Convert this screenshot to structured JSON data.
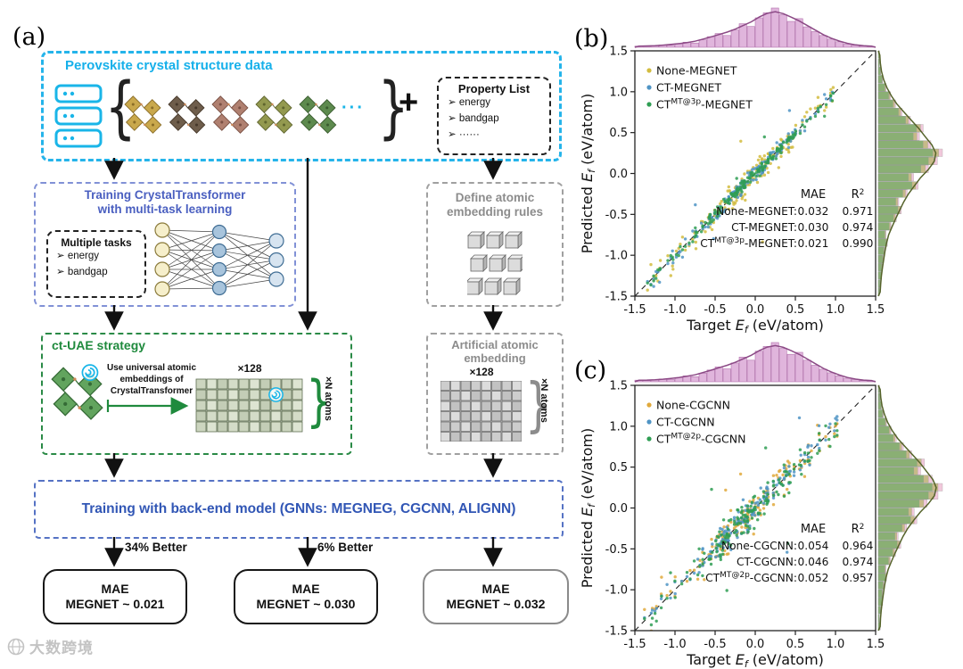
{
  "panels": {
    "a": "(a)",
    "b": "(b)",
    "c": "(c)"
  },
  "watermark": {
    "text": "大数跨境"
  },
  "flow": {
    "data_box": {
      "title": "Perovskite crystal structure data",
      "brace_left": "{",
      "brace_right": "}",
      "ellipsis": "···",
      "plus": "+",
      "property_list": {
        "title": "Property List",
        "items": [
          "➢ energy",
          "➢ bandgap",
          "➢ ······"
        ]
      }
    },
    "training_box": {
      "title_line1": "Training CrystalTransformer",
      "title_line2": "with multi-task learning",
      "tasks_title": "Multiple tasks",
      "tasks": [
        "➢ energy",
        "➢ bandgap"
      ]
    },
    "rules_box": {
      "title_line1": "Define atomic",
      "title_line2": "embedding rules"
    },
    "ctuae_box": {
      "title": "ct-UAE strategy",
      "note_line1": "Use universal atomic",
      "note_line2": "embeddings of",
      "note_line3": "CrystalTransformer",
      "grid_label": "×128",
      "brace": "}",
      "atoms_label": "×N atoms"
    },
    "artificial_box": {
      "title_line1": "Artificial atomic",
      "title_line2": "embedding",
      "grid_label": "×128",
      "brace": "}",
      "atoms_label": "×N atoms"
    },
    "backend_box": {
      "title": "Training with back-end model (GNNs: MEGNEG, CGCNN, ALIGNN)"
    },
    "better_label_1": "34% Better",
    "better_label_2": "6% Better",
    "result_boxes": [
      {
        "line1": "MAE",
        "line2": "MEGNET ~ 0.021"
      },
      {
        "line1": "MAE",
        "line2": "MEGNET ~ 0.030"
      },
      {
        "line1": "MAE",
        "line2": "MEGNET ~ 0.032"
      }
    ]
  },
  "chart_data": [
    {
      "id": "chart-b",
      "type": "scatter",
      "title": "Predicted vs Target formation energy (MEGNET back-end)",
      "xlabel": "Target E_f (eV/atom)",
      "ylabel": "Predicted E_f (eV/atom)",
      "xlabel_parts": {
        "pre": "Target ",
        "var": "E",
        "sub": "f",
        "post": " (eV/atom)"
      },
      "ylabel_parts": {
        "pre": "Predicted ",
        "var": "E",
        "sub": "f",
        "post": " (eV/atom)"
      },
      "xlim": [
        -1.5,
        1.5
      ],
      "ylim": [
        -1.5,
        1.5
      ],
      "tick_values": [
        -1.5,
        -1.0,
        -0.5,
        0.0,
        0.5,
        1.0,
        1.5
      ],
      "tick_labels": [
        "-1.5",
        "-1.0",
        "-0.5",
        "0.0",
        "0.5",
        "1.0",
        "1.5"
      ],
      "identity_line": true,
      "legend_position": "upper-left",
      "stats": {
        "mae_header": "MAE",
        "r2_header_base": "R",
        "r2_header_sup": "2"
      },
      "seed": 42,
      "n_points": 170,
      "outlier_frac": 0.028,
      "x_dist": {
        "core_mean": -0.05,
        "core_sd": 0.42,
        "tail_frac": 0.2,
        "min": -1.38,
        "max": 1.02
      },
      "series": [
        {
          "name": "None-MEGNET",
          "label_pre": "None-MEGNET",
          "label_sup": "",
          "label_post": "",
          "color": "#d2bc40",
          "mae": "0.032",
          "r2": "0.971",
          "noise": 0.085,
          "seed": 101
        },
        {
          "name": "CT-MEGNET",
          "label_pre": "CT-MEGNET",
          "label_sup": "",
          "label_post": "",
          "color": "#4f94c4",
          "mae": "0.030",
          "r2": "0.974",
          "noise": 0.055,
          "seed": 202
        },
        {
          "name": "CT^MT@3p-MEGNET",
          "label_pre": "CT",
          "label_sup": "MT@3p",
          "label_post": "-MEGNET",
          "color": "#2f9e54",
          "mae": "0.021",
          "r2": "0.990",
          "noise": 0.035,
          "seed": 303
        }
      ],
      "top_hist": {
        "fill": "#d8a3d3",
        "edge": "#b272ac",
        "curve": "#8c4a86",
        "heights": [
          0.03,
          0.02,
          0.04,
          0.06,
          0.05,
          0.09,
          0.13,
          0.11,
          0.19,
          0.27,
          0.35,
          0.3,
          0.44,
          0.6,
          0.53,
          0.75,
          0.88,
          1.0,
          0.83,
          0.66,
          0.73,
          0.52,
          0.4,
          0.3,
          0.21,
          0.14,
          0.08,
          0.05,
          0.03,
          0.02
        ]
      },
      "right_hist": {
        "curve": "#55632a",
        "layers": [
          {
            "fill": "#e8a3c3",
            "scale": 1.0
          },
          {
            "fill": "#aab050",
            "scale": 0.94
          },
          {
            "fill": "#63a868",
            "scale": 0.85
          }
        ],
        "heights": [
          0.02,
          0.03,
          0.05,
          0.06,
          0.08,
          0.1,
          0.14,
          0.12,
          0.2,
          0.28,
          0.36,
          0.32,
          0.45,
          0.62,
          0.55,
          0.78,
          0.92,
          1.0,
          0.82,
          0.64,
          0.7,
          0.5,
          0.37,
          0.27,
          0.19,
          0.12,
          0.07,
          0.04,
          0.02,
          0.02
        ]
      }
    },
    {
      "id": "chart-c",
      "type": "scatter",
      "title": "Predicted vs Target formation energy (CGCNN back-end)",
      "xlabel": "Target E_f (eV/atom)",
      "ylabel": "Predicted E_f (eV/atom)",
      "xlabel_parts": {
        "pre": "Target ",
        "var": "E",
        "sub": "f",
        "post": " (eV/atom)"
      },
      "ylabel_parts": {
        "pre": "Predicted ",
        "var": "E",
        "sub": "f",
        "post": " (eV/atom)"
      },
      "xlim": [
        -1.5,
        1.5
      ],
      "ylim": [
        -1.5,
        1.5
      ],
      "tick_values": [
        -1.5,
        -1.0,
        -0.5,
        0.0,
        0.5,
        1.0,
        1.5
      ],
      "tick_labels": [
        "-1.5",
        "-1.0",
        "-0.5",
        "0.0",
        "0.5",
        "1.0",
        "1.5"
      ],
      "identity_line": true,
      "legend_position": "upper-left",
      "stats": {
        "mae_header": "MAE",
        "r2_header_base": "R",
        "r2_header_sup": "2"
      },
      "seed": 77,
      "n_points": 170,
      "outlier_frac": 0.04,
      "x_dist": {
        "core_mean": -0.05,
        "core_sd": 0.43,
        "tail_frac": 0.2,
        "min": -1.38,
        "max": 1.02
      },
      "series": [
        {
          "name": "None-CGCNN",
          "label_pre": "None-CGCNN",
          "label_sup": "",
          "label_post": "",
          "color": "#e0a93c",
          "mae": "0.054",
          "r2": "0.964",
          "noise": 0.105,
          "seed": 404
        },
        {
          "name": "CT-CGCNN",
          "label_pre": "CT-CGCNN",
          "label_sup": "",
          "label_post": "",
          "color": "#4f94c4",
          "mae": "0.046",
          "r2": "0.974",
          "noise": 0.085,
          "seed": 505
        },
        {
          "name": "CT^MT@2p-CGCNN",
          "label_pre": "CT",
          "label_sup": "MT@2p",
          "label_post": "-CGCNN",
          "color": "#2f9e54",
          "mae": "0.052",
          "r2": "0.957",
          "noise": 0.1,
          "seed": 606
        }
      ],
      "top_hist": {
        "fill": "#d8a3d3",
        "edge": "#b272ac",
        "curve": "#8c4a86",
        "heights": [
          0.04,
          0.03,
          0.05,
          0.07,
          0.06,
          0.11,
          0.15,
          0.13,
          0.22,
          0.3,
          0.38,
          0.33,
          0.48,
          0.63,
          0.55,
          0.78,
          0.9,
          1.0,
          0.85,
          0.7,
          0.75,
          0.55,
          0.42,
          0.32,
          0.23,
          0.15,
          0.09,
          0.06,
          0.03,
          0.02
        ]
      },
      "right_hist": {
        "curve": "#55632a",
        "layers": [
          {
            "fill": "#e8a3c3",
            "scale": 1.0
          },
          {
            "fill": "#aab050",
            "scale": 0.93
          },
          {
            "fill": "#63a868",
            "scale": 0.84
          }
        ],
        "heights": [
          0.03,
          0.02,
          0.04,
          0.07,
          0.07,
          0.09,
          0.13,
          0.12,
          0.19,
          0.27,
          0.35,
          0.31,
          0.44,
          0.6,
          0.56,
          0.76,
          0.93,
          1.0,
          0.84,
          0.66,
          0.72,
          0.52,
          0.39,
          0.28,
          0.2,
          0.13,
          0.08,
          0.05,
          0.03,
          0.02
        ]
      }
    }
  ]
}
